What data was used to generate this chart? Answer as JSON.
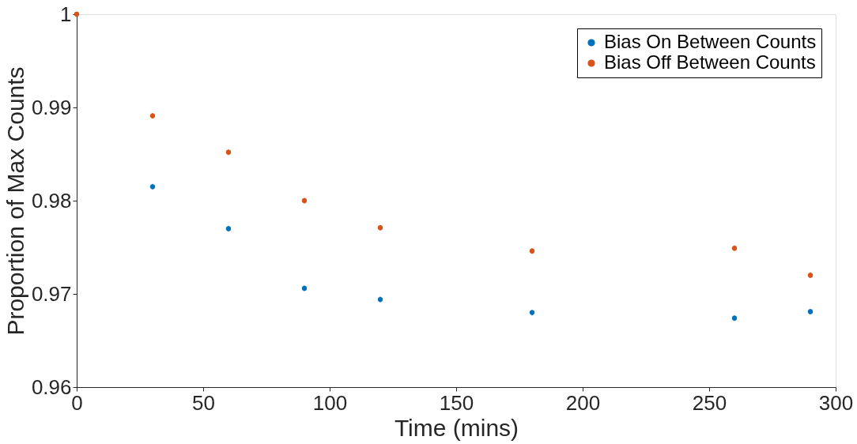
{
  "chart_data": {
    "type": "scatter",
    "xlabel": "Time (mins)",
    "ylabel": "Proportion of Max Counts",
    "x": [
      0,
      30,
      60,
      90,
      120,
      180,
      260,
      290
    ],
    "series": [
      {
        "name": "Bias On Between Counts",
        "color": "#0072bd",
        "values": [
          null,
          0.9815,
          0.977,
          0.9706,
          0.9694,
          0.968,
          0.9674,
          0.9681
        ],
        "errors": [
          null,
          0.0003,
          0.0003,
          0.0003,
          0.0003,
          0.0003,
          0.0003,
          0.0003
        ]
      },
      {
        "name": "Bias Off Between Counts",
        "color": "#d95319",
        "values": [
          1.0,
          0.9891,
          0.9852,
          0.98,
          0.9771,
          0.9746,
          0.9749,
          0.972
        ],
        "errors": [
          null,
          0.0003,
          0.0003,
          0.0003,
          0.0003,
          0.0003,
          0.0003,
          0.0003
        ]
      }
    ],
    "xlim": [
      0,
      300
    ],
    "xticks": [
      0,
      50,
      100,
      150,
      200,
      250,
      300
    ],
    "ylim": [
      0.96,
      1.0
    ],
    "yticks": [
      0.96,
      0.97,
      0.98,
      0.99,
      1
    ],
    "grid": false,
    "legend": "top right",
    "marker": "circle"
  }
}
